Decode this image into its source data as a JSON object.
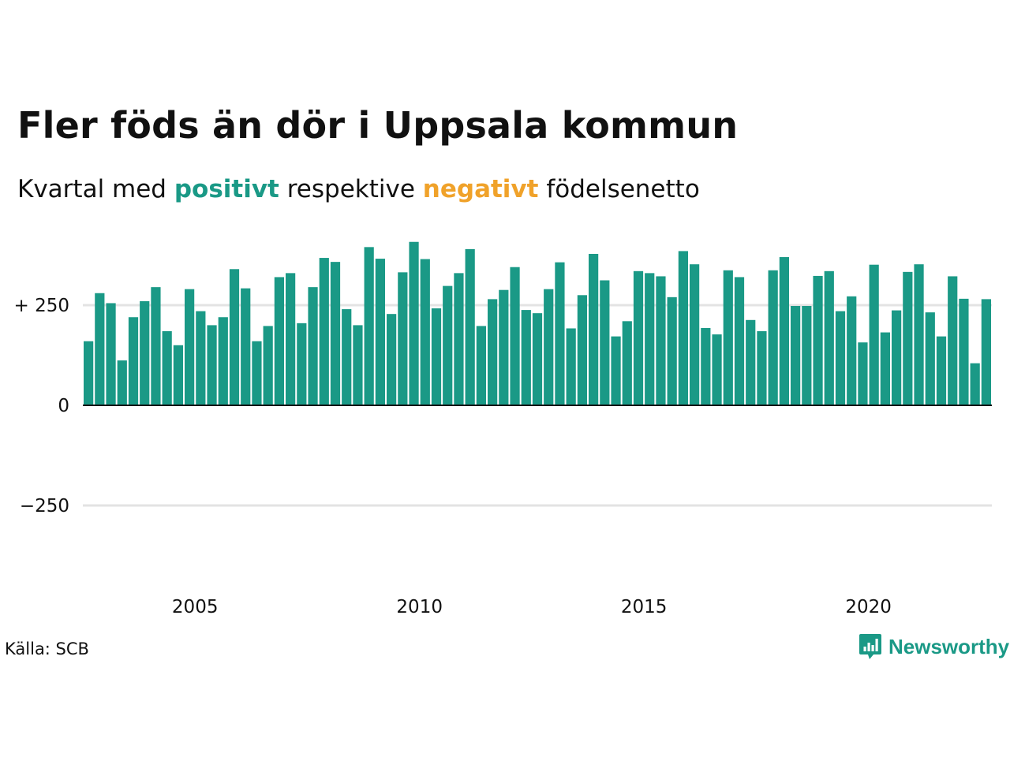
{
  "title": "Fler föds än dör i Uppsala kommun",
  "subtitle": {
    "prefix": "Kvartal med ",
    "positive_word": "positivt",
    "middle": " respektive ",
    "negative_word": "negativt",
    "suffix": " födelsenetto"
  },
  "colors": {
    "positive": "#1a9986",
    "negative": "#f0a22a",
    "gridline": "#e3e3e3",
    "baseline": "#111111"
  },
  "source": "Källa: SCB",
  "logo": {
    "text": "Newsworthy",
    "icon": "newsworthy-chart-icon"
  },
  "chart_data": {
    "type": "bar",
    "title": "Fler föds än dör i Uppsala kommun",
    "subtitle": "Kvartal med positivt respektive negativt födelsenetto",
    "xlabel": "",
    "ylabel": "",
    "x_start": 2003,
    "ylim": [
      -400,
      420
    ],
    "yticks": [
      {
        "value": 250,
        "label": "+ 250"
      },
      {
        "value": 0,
        "label": "0"
      },
      {
        "value": -250,
        "label": "−250"
      }
    ],
    "xticks": [
      {
        "year": 2005,
        "label": "2005"
      },
      {
        "year": 2010,
        "label": "2010"
      },
      {
        "year": 2015,
        "label": "2015"
      },
      {
        "year": 2020,
        "label": "2020"
      }
    ],
    "grid": true,
    "series": [
      {
        "values": [
          160,
          280,
          255,
          112,
          220,
          260,
          295,
          185,
          150,
          290,
          235,
          200,
          220,
          340,
          292,
          160,
          198,
          320,
          330,
          205,
          295,
          368,
          358,
          240,
          200,
          395,
          366,
          228,
          332,
          408,
          365,
          242,
          298,
          330,
          390,
          198,
          265,
          288,
          345,
          238,
          230,
          290,
          357,
          192,
          275,
          378,
          312,
          172,
          210,
          335,
          330,
          322,
          270,
          385,
          352,
          193,
          177,
          337,
          320,
          213,
          185,
          337,
          370,
          248,
          248,
          323,
          335,
          235,
          272,
          157,
          351,
          182,
          237,
          333,
          352,
          232,
          172,
          322,
          266,
          105,
          265
        ]
      }
    ]
  }
}
